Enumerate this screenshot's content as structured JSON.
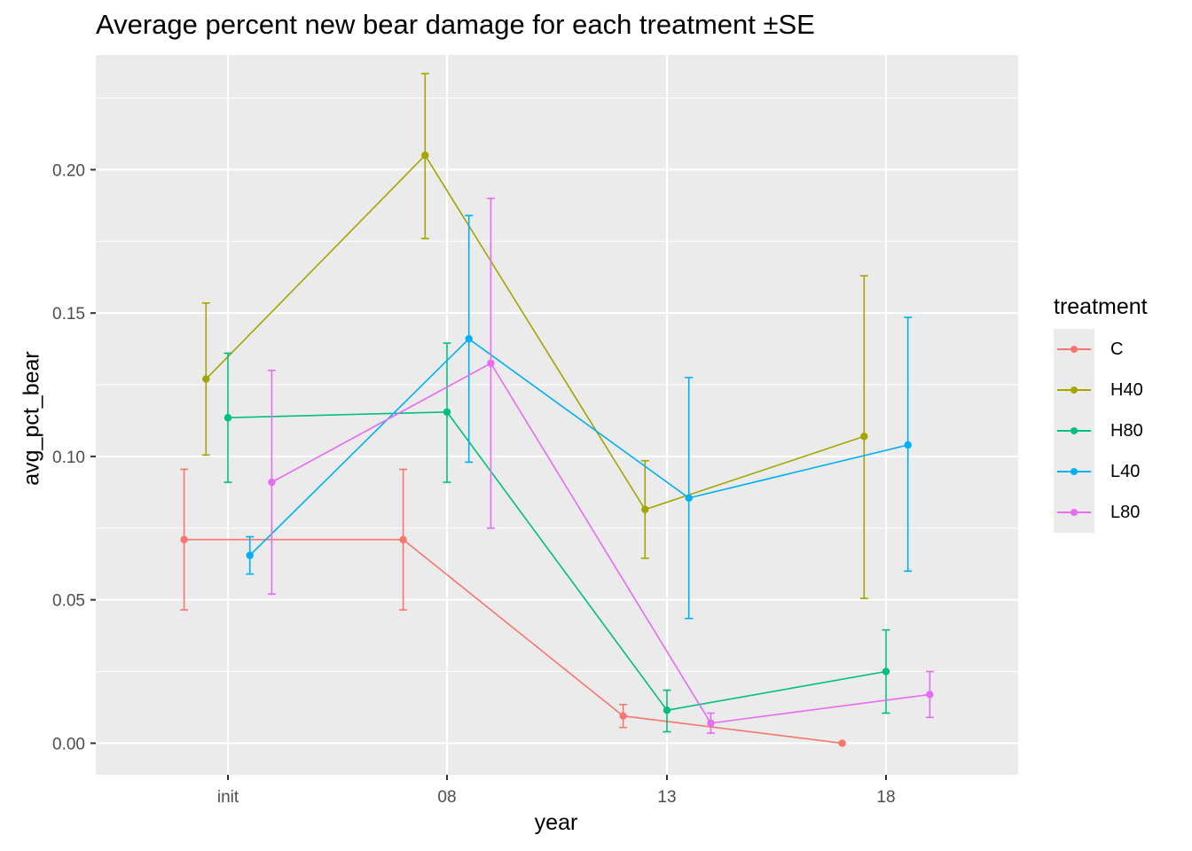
{
  "chart_data": {
    "type": "line",
    "title": "Average percent new bear damage for each treatment ±SE",
    "xlabel": "year",
    "ylabel": "avg_pct_bear",
    "categories": [
      "init",
      "08",
      "13",
      "18"
    ],
    "yticks": [
      "0.00",
      "0.05",
      "0.10",
      "0.15",
      "0.20"
    ],
    "ylim": [
      -0.011,
      0.24
    ],
    "grid": true,
    "legend_title": "treatment",
    "legend_position": "right",
    "dodge_order": [
      "C",
      "H40",
      "H80",
      "L40",
      "L80"
    ],
    "series": [
      {
        "name": "C",
        "color": "#F8766D",
        "values": [
          0.071,
          0.071,
          0.0095,
          0.0
        ],
        "se_lower": [
          0.0465,
          0.0465,
          0.0055,
          0.0
        ],
        "se_upper": [
          0.0955,
          0.0955,
          0.0135,
          0.0
        ]
      },
      {
        "name": "H40",
        "color": "#A3A500",
        "values": [
          0.127,
          0.205,
          0.0815,
          0.107
        ],
        "se_lower": [
          0.1005,
          0.176,
          0.0645,
          0.0505
        ],
        "se_upper": [
          0.1535,
          0.2335,
          0.0985,
          0.163
        ]
      },
      {
        "name": "H80",
        "color": "#00BF7D",
        "values": [
          0.1135,
          0.1155,
          0.0115,
          0.025
        ],
        "se_lower": [
          0.091,
          0.091,
          0.004,
          0.0105
        ],
        "se_upper": [
          0.136,
          0.1395,
          0.0185,
          0.0395
        ]
      },
      {
        "name": "L40",
        "color": "#00B0F6",
        "values": [
          0.0655,
          0.141,
          0.0855,
          0.104
        ],
        "se_lower": [
          0.059,
          0.098,
          0.0435,
          0.06
        ],
        "se_upper": [
          0.072,
          0.184,
          0.1275,
          0.1485
        ]
      },
      {
        "name": "L80",
        "color": "#E76BF3",
        "values": [
          0.091,
          0.1325,
          0.007,
          0.017
        ],
        "se_lower": [
          0.052,
          0.075,
          0.0035,
          0.009
        ],
        "se_upper": [
          0.13,
          0.19,
          0.0105,
          0.025
        ]
      }
    ]
  }
}
